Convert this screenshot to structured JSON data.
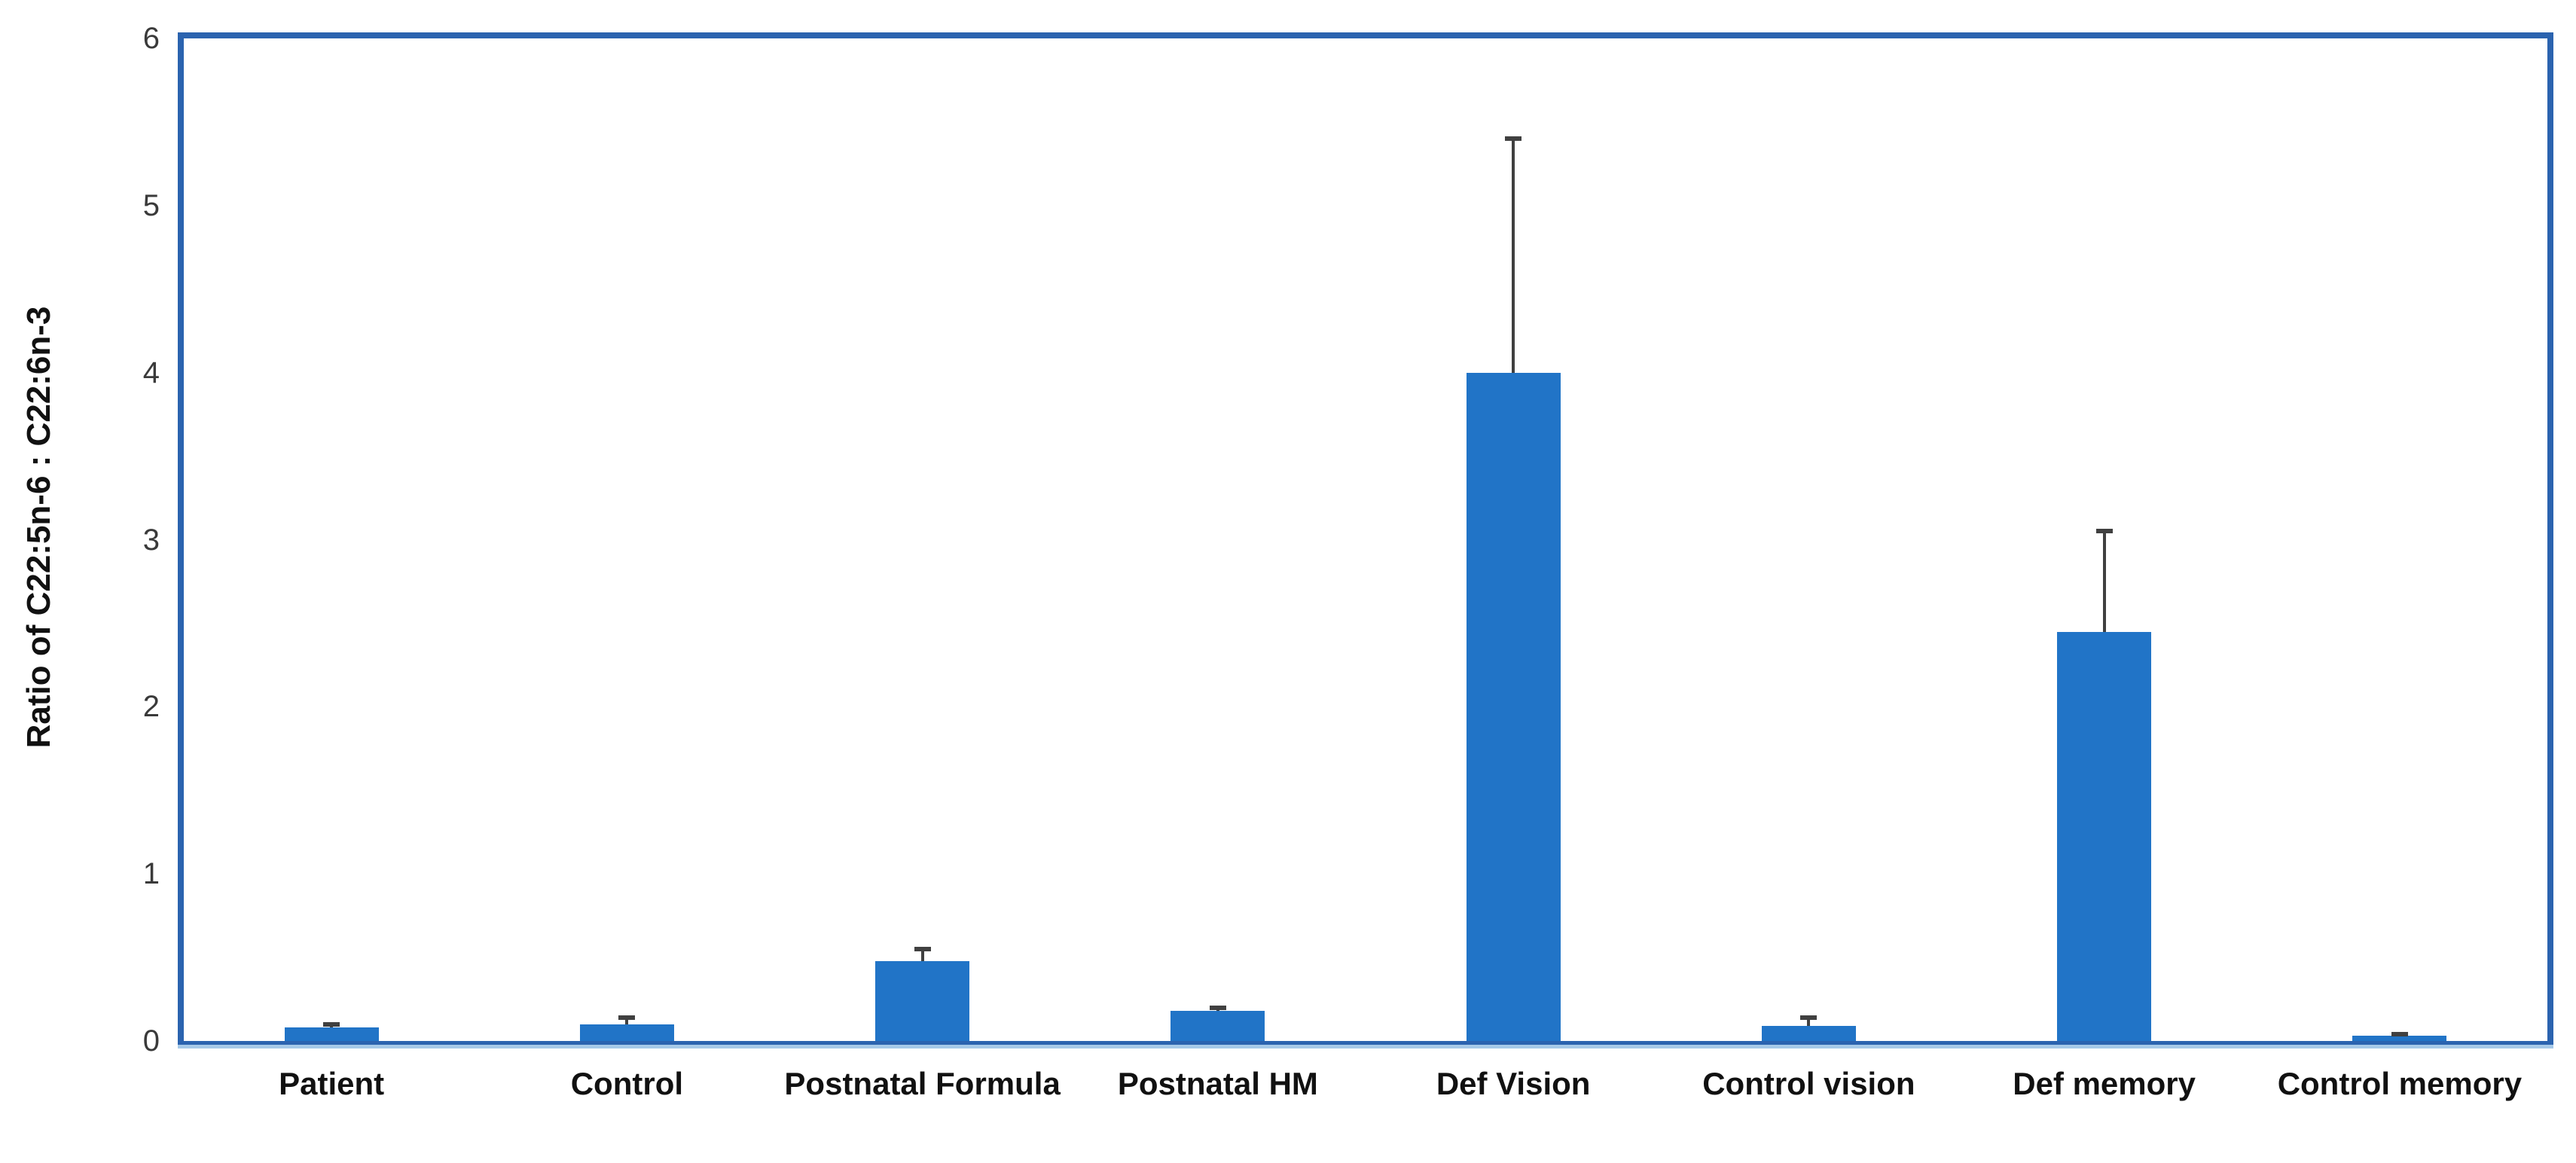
{
  "chart_data": {
    "type": "bar",
    "title": "",
    "xlabel": "",
    "ylabel": "Ratio of C22:5n-6 : C22:6n-3",
    "categories": [
      "Patient",
      "Control",
      "Postnatal Formula",
      "Postnatal HM",
      "Def Vision",
      "Control vision",
      "Def memory",
      "Control memory"
    ],
    "values": [
      0.08,
      0.1,
      0.48,
      0.18,
      4.0,
      0.09,
      2.45,
      0.03
    ],
    "error_plus": [
      0.02,
      0.04,
      0.07,
      0.02,
      1.4,
      0.05,
      0.6,
      0.01
    ],
    "ylim": [
      0,
      6
    ],
    "yticks": [
      0,
      1,
      2,
      3,
      4,
      5,
      6
    ],
    "grid": false,
    "legend": false,
    "bar_color": "#2174c7",
    "plot_border_color": "#2b63af",
    "axis_underline_color": "#a6c9e8",
    "error_bar_color": "#404040",
    "tick_label_color": "#3a3a3a",
    "category_label_color": "#111111"
  }
}
